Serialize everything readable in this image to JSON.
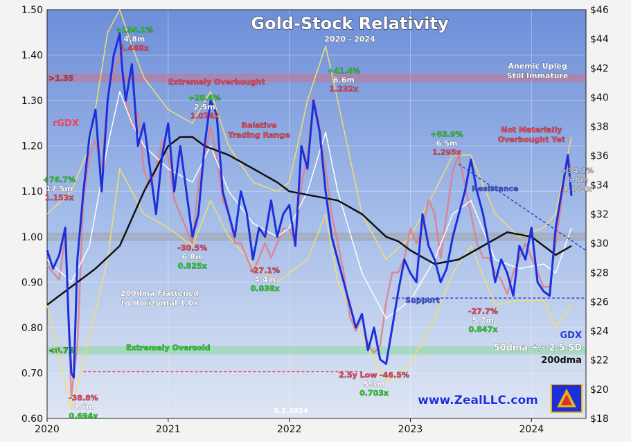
{
  "chart_data": {
    "type": "line",
    "title": "Gold-Stock Relativity",
    "subtitle": "2020 - 2024",
    "date_stamp": "5.1.2024",
    "watermark": "www.ZealLLC.com",
    "left_axis": {
      "label": "rGDX",
      "ylim": [
        0.6,
        1.5
      ],
      "ticks": [
        "0.60",
        "0.70",
        "0.80",
        "0.90",
        "1.00",
        "1.10",
        "1.20",
        "1.30",
        "1.40",
        "1.50"
      ],
      "tick_values": [
        0.6,
        0.7,
        0.8,
        0.9,
        1.0,
        1.1,
        1.2,
        1.3,
        1.4,
        1.5
      ]
    },
    "right_axis": {
      "label": "GDX",
      "ylim": [
        18,
        46
      ],
      "ticks": [
        "$18",
        "$20",
        "$22",
        "$24",
        "$26",
        "$28",
        "$30",
        "$32",
        "$34",
        "$36",
        "$38",
        "$40",
        "$42",
        "$44",
        "$46"
      ],
      "tick_values": [
        18,
        20,
        22,
        24,
        26,
        28,
        30,
        32,
        34,
        36,
        38,
        40,
        42,
        44,
        46
      ]
    },
    "x_axis": {
      "ticks": [
        "2020",
        "2021",
        "2022",
        "2023",
        "2024"
      ],
      "tick_values": [
        2020,
        2021,
        2022,
        2023,
        2024
      ],
      "xlim": [
        2020.0,
        2024.45
      ]
    },
    "bands": [
      {
        "label": ">1.35",
        "value": 1.35,
        "color": "#d96b7a"
      },
      {
        "label": "1.00",
        "value": 1.0,
        "color": "#9a9a9a"
      },
      {
        "label": "<0.75",
        "value": 0.75,
        "color": "#7ddc8a"
      }
    ],
    "legend": {
      "gdx": "GDX",
      "sd": "50dma +/- 2.5 SD",
      "dma200": "200dma"
    },
    "series": [
      {
        "name": "rGDX",
        "axis": "left",
        "color": "#1c2fdc",
        "x": [
          2020.0,
          2020.05,
          2020.1,
          2020.15,
          2020.18,
          2020.2,
          2020.22,
          2020.25,
          2020.3,
          2020.35,
          2020.4,
          2020.45,
          2020.5,
          2020.55,
          2020.6,
          2020.62,
          2020.65,
          2020.7,
          2020.75,
          2020.8,
          2020.85,
          2020.9,
          2020.95,
          2021.0,
          2021.05,
          2021.1,
          2021.15,
          2021.2,
          2021.25,
          2021.3,
          2021.35,
          2021.4,
          2021.45,
          2021.5,
          2021.55,
          2021.6,
          2021.65,
          2021.7,
          2021.75,
          2021.8,
          2021.85,
          2021.9,
          2021.95,
          2022.0,
          2022.05,
          2022.1,
          2022.15,
          2022.2,
          2022.25,
          2022.3,
          2022.35,
          2022.4,
          2022.45,
          2022.5,
          2022.55,
          2022.6,
          2022.65,
          2022.7,
          2022.75,
          2022.8,
          2022.85,
          2022.9,
          2022.95,
          2023.0,
          2023.05,
          2023.1,
          2023.15,
          2023.2,
          2023.25,
          2023.3,
          2023.35,
          2023.4,
          2023.45,
          2023.5,
          2023.55,
          2023.6,
          2023.65,
          2023.7,
          2023.75,
          2023.8,
          2023.85,
          2023.9,
          2023.95,
          2024.0,
          2024.05,
          2024.1,
          2024.15,
          2024.2,
          2024.25,
          2024.3,
          2024.33
        ],
        "values": [
          0.97,
          0.93,
          0.96,
          1.02,
          0.8,
          0.7,
          0.69,
          0.95,
          1.1,
          1.22,
          1.28,
          1.1,
          1.3,
          1.4,
          1.448,
          1.37,
          1.3,
          1.38,
          1.2,
          1.25,
          1.15,
          1.05,
          1.18,
          1.25,
          1.1,
          1.2,
          1.1,
          1.0,
          1.05,
          1.2,
          1.3,
          1.27,
          1.1,
          1.05,
          1.0,
          1.1,
          1.05,
          0.95,
          1.02,
          1.0,
          1.08,
          1.0,
          1.05,
          1.07,
          0.98,
          1.2,
          1.15,
          1.3,
          1.232,
          1.1,
          1.0,
          0.95,
          0.9,
          0.85,
          0.8,
          0.83,
          0.75,
          0.8,
          0.73,
          0.72,
          0.8,
          0.88,
          0.95,
          0.92,
          0.9,
          1.05,
          0.98,
          0.95,
          0.9,
          0.93,
          1.0,
          1.05,
          1.1,
          1.17,
          1.1,
          1.05,
          0.98,
          0.9,
          0.95,
          0.92,
          0.87,
          0.98,
          0.95,
          1.02,
          0.9,
          0.88,
          0.87,
          1.02,
          1.1,
          1.18,
          1.09
        ]
      },
      {
        "name": "GDX",
        "axis": "right",
        "color": "#e27d86",
        "x": [
          2020.0,
          2020.05,
          2020.1,
          2020.15,
          2020.2,
          2020.25,
          2020.3,
          2020.35,
          2020.4,
          2020.45,
          2020.5,
          2020.55,
          2020.6,
          2020.65,
          2020.7,
          2020.75,
          2020.8,
          2020.85,
          2020.9,
          2020.95,
          2021.0,
          2021.05,
          2021.1,
          2021.15,
          2021.2,
          2021.25,
          2021.3,
          2021.35,
          2021.4,
          2021.45,
          2021.5,
          2021.55,
          2021.6,
          2021.65,
          2021.7,
          2021.75,
          2021.8,
          2021.85,
          2021.9,
          2021.95,
          2022.0,
          2022.05,
          2022.1,
          2022.15,
          2022.2,
          2022.25,
          2022.3,
          2022.35,
          2022.4,
          2022.45,
          2022.5,
          2022.55,
          2022.6,
          2022.65,
          2022.7,
          2022.75,
          2022.8,
          2022.85,
          2022.9,
          2022.95,
          2023.0,
          2023.05,
          2023.1,
          2023.15,
          2023.2,
          2023.25,
          2023.3,
          2023.35,
          2023.4,
          2023.45,
          2023.5,
          2023.55,
          2023.6,
          2023.65,
          2023.7,
          2023.75,
          2023.8,
          2023.85,
          2023.9,
          2023.95,
          2024.0,
          2024.05,
          2024.1,
          2024.15,
          2024.2,
          2024.25,
          2024.3,
          2024.33
        ],
        "values": [
          28.5,
          28,
          27.5,
          30.5,
          19.5,
          23,
          33,
          36,
          37,
          35,
          40,
          42,
          43,
          40,
          38,
          39,
          35,
          34,
          35,
          37,
          36,
          33,
          32,
          31,
          30,
          34,
          36,
          38,
          36,
          33,
          32,
          30,
          30,
          29,
          28,
          29,
          30,
          29,
          30,
          31,
          31,
          30,
          34,
          36,
          40,
          38,
          35,
          32,
          30,
          28,
          25,
          24,
          25,
          23,
          22.5,
          23,
          26,
          28,
          28,
          29,
          31,
          30,
          31,
          33,
          32,
          29,
          32,
          35,
          36,
          34,
          32,
          30,
          29,
          29,
          28,
          27.5,
          26.5,
          28,
          29,
          30,
          29,
          28,
          27,
          27,
          30,
          33,
          36,
          35
        ]
      },
      {
        "name": "200dma",
        "axis": "left",
        "color": "#111111",
        "x": [
          2020.0,
          2020.2,
          2020.4,
          2020.6,
          2020.8,
          2021.0,
          2021.1,
          2021.2,
          2021.3,
          2021.5,
          2021.7,
          2021.9,
          2022.0,
          2022.2,
          2022.4,
          2022.6,
          2022.8,
          2022.9,
          2023.0,
          2023.2,
          2023.4,
          2023.6,
          2023.8,
          2024.0,
          2024.2,
          2024.33
        ],
        "values": [
          0.85,
          0.89,
          0.93,
          0.98,
          1.1,
          1.2,
          1.22,
          1.22,
          1.2,
          1.18,
          1.15,
          1.12,
          1.1,
          1.09,
          1.08,
          1.05,
          1.0,
          0.99,
          0.97,
          0.94,
          0.95,
          0.98,
          1.01,
          1.0,
          0.96,
          0.98
        ]
      },
      {
        "name": "50dma",
        "axis": "left",
        "color": "#ffffff",
        "x": [
          2020.0,
          2020.2,
          2020.35,
          2020.5,
          2020.6,
          2020.7,
          2020.8,
          2021.0,
          2021.2,
          2021.35,
          2021.5,
          2021.7,
          2021.9,
          2022.0,
          2022.15,
          2022.3,
          2022.4,
          2022.6,
          2022.8,
          2023.0,
          2023.2,
          2023.35,
          2023.5,
          2023.7,
          2023.9,
          2024.1,
          2024.2,
          2024.33
        ],
        "values": [
          0.95,
          0.9,
          0.98,
          1.2,
          1.32,
          1.25,
          1.2,
          1.15,
          1.12,
          1.2,
          1.1,
          1.03,
          1.0,
          1.02,
          1.1,
          1.23,
          1.1,
          0.92,
          0.82,
          0.86,
          0.95,
          1.05,
          1.08,
          0.95,
          0.93,
          0.94,
          0.92,
          1.02
        ]
      },
      {
        "name": "+2.5 SD",
        "axis": "left",
        "color": "#f2e06a",
        "x": [
          2020.0,
          2020.2,
          2020.35,
          2020.5,
          2020.6,
          2020.7,
          2020.8,
          2021.0,
          2021.2,
          2021.35,
          2021.5,
          2021.7,
          2021.9,
          2022.0,
          2022.15,
          2022.3,
          2022.4,
          2022.6,
          2022.8,
          2023.0,
          2023.2,
          2023.35,
          2023.5,
          2023.7,
          2023.9,
          2024.1,
          2024.2,
          2024.33
        ],
        "values": [
          1.05,
          1.1,
          1.2,
          1.45,
          1.5,
          1.42,
          1.35,
          1.28,
          1.25,
          1.32,
          1.2,
          1.12,
          1.1,
          1.12,
          1.3,
          1.42,
          1.3,
          1.05,
          0.95,
          1.0,
          1.1,
          1.18,
          1.18,
          1.05,
          1.0,
          1.02,
          1.05,
          1.22
        ]
      },
      {
        "name": "-2.5 SD",
        "axis": "left",
        "color": "#f2e06a",
        "x": [
          2020.0,
          2020.2,
          2020.35,
          2020.5,
          2020.6,
          2020.7,
          2020.8,
          2021.0,
          2021.2,
          2021.35,
          2021.5,
          2021.7,
          2021.9,
          2022.0,
          2022.15,
          2022.3,
          2022.4,
          2022.6,
          2022.8,
          2023.0,
          2023.2,
          2023.35,
          2023.5,
          2023.7,
          2023.9,
          2024.1,
          2024.2,
          2024.33
        ],
        "values": [
          0.85,
          0.62,
          0.78,
          0.95,
          1.15,
          1.1,
          1.05,
          1.02,
          0.98,
          1.08,
          1.0,
          0.94,
          0.9,
          0.92,
          0.95,
          1.05,
          0.9,
          0.78,
          0.68,
          0.72,
          0.82,
          0.92,
          0.98,
          0.85,
          0.86,
          0.86,
          0.8,
          0.85
        ]
      }
    ],
    "annotations": [
      {
        "lines": [
          "+76.7%",
          "17.5m",
          "1.153x"
        ],
        "x": 2020.1,
        "y": 1.12,
        "colors": [
          "#2bd12b",
          "#ffffff",
          "#f0445a"
        ]
      },
      {
        "lines": [
          "+134.1%",
          "4.8m",
          "1.448x"
        ],
        "x": 2020.72,
        "y": 1.45,
        "colors": [
          "#2bd12b",
          "#ffffff",
          "#f0445a"
        ]
      },
      {
        "lines": [
          "+28.4%",
          "2.5m",
          "1.074x"
        ],
        "x": 2021.3,
        "y": 1.3,
        "colors": [
          "#2bd12b",
          "#ffffff",
          "#f0445a"
        ]
      },
      {
        "lines": [
          "+41.4%",
          "6.6m",
          "1.232x"
        ],
        "x": 2022.45,
        "y": 1.36,
        "colors": [
          "#2bd12b",
          "#ffffff",
          "#f0445a"
        ]
      },
      {
        "lines": [
          "+63.9%",
          "6.5m",
          "1.295x"
        ],
        "x": 2023.3,
        "y": 1.22,
        "colors": [
          "#2bd12b",
          "#ffffff",
          "#f0445a"
        ]
      },
      {
        "lines": [
          "+34.2%",
          "6.8m",
          "1.180x"
        ],
        "x": 2024.38,
        "y": 1.14,
        "colors": [
          "#cccccc",
          "#cccccc",
          "#cccccc"
        ]
      },
      {
        "lines": [
          "-38.8%",
          "0.6m",
          "0.694x"
        ],
        "x": 2020.3,
        "y": 0.64,
        "colors": [
          "#f0445a",
          "#ffffff",
          "#2bd12b"
        ]
      },
      {
        "lines": [
          "-30.5%",
          "6.8m",
          "0.825x"
        ],
        "x": 2021.2,
        "y": 0.97,
        "colors": [
          "#f0445a",
          "#ffffff",
          "#2bd12b"
        ]
      },
      {
        "lines": [
          "-27.1%",
          "4.4m",
          "0.838x"
        ],
        "x": 2021.8,
        "y": 0.92,
        "colors": [
          "#f0445a",
          "#ffffff",
          "#2bd12b"
        ]
      },
      {
        "lines": [
          "2.5y Low  -46.5%",
          "5.3m",
          "0.703x"
        ],
        "x": 2022.7,
        "y": 0.69,
        "colors": [
          "#f0445a",
          "#ffffff",
          "#2bd12b"
        ]
      },
      {
        "lines": [
          "-27.7%",
          "5.7m",
          "0.847x"
        ],
        "x": 2023.6,
        "y": 0.83,
        "colors": [
          "#f0445a",
          "#ffffff",
          "#2bd12b"
        ]
      }
    ],
    "callouts": [
      {
        "text": [
          "Extremely Overbought"
        ],
        "x": 2021.4,
        "y": 1.335,
        "color": "#f0445a"
      },
      {
        "text": [
          "Relative",
          "Trading Range"
        ],
        "x": 2021.75,
        "y": 1.24,
        "color": "#f0445a"
      },
      {
        "text": [
          "Extremely Oversold"
        ],
        "x": 2021.0,
        "y": 0.75,
        "color": "#2bd12b"
      },
      {
        "text": [
          "200dma Flattened",
          "to Horizontal 1.0x"
        ],
        "x": 2020.93,
        "y": 0.87,
        "color": "#ffffff"
      },
      {
        "text": [
          "Anemic Upleg",
          "Still Immature"
        ],
        "x": 2024.05,
        "y": 1.37,
        "color": "#ffffff"
      },
      {
        "text": [
          "Not Materially",
          "Overbought Yet"
        ],
        "x": 2024.0,
        "y": 1.23,
        "color": "#f0445a"
      },
      {
        "text": [
          "Resistance"
        ],
        "x": 2023.7,
        "y": 1.1,
        "color": "#3a4fe0"
      },
      {
        "text": [
          "Support"
        ],
        "x": 2023.1,
        "y": 0.855,
        "color": "#3a4fe0"
      }
    ]
  }
}
